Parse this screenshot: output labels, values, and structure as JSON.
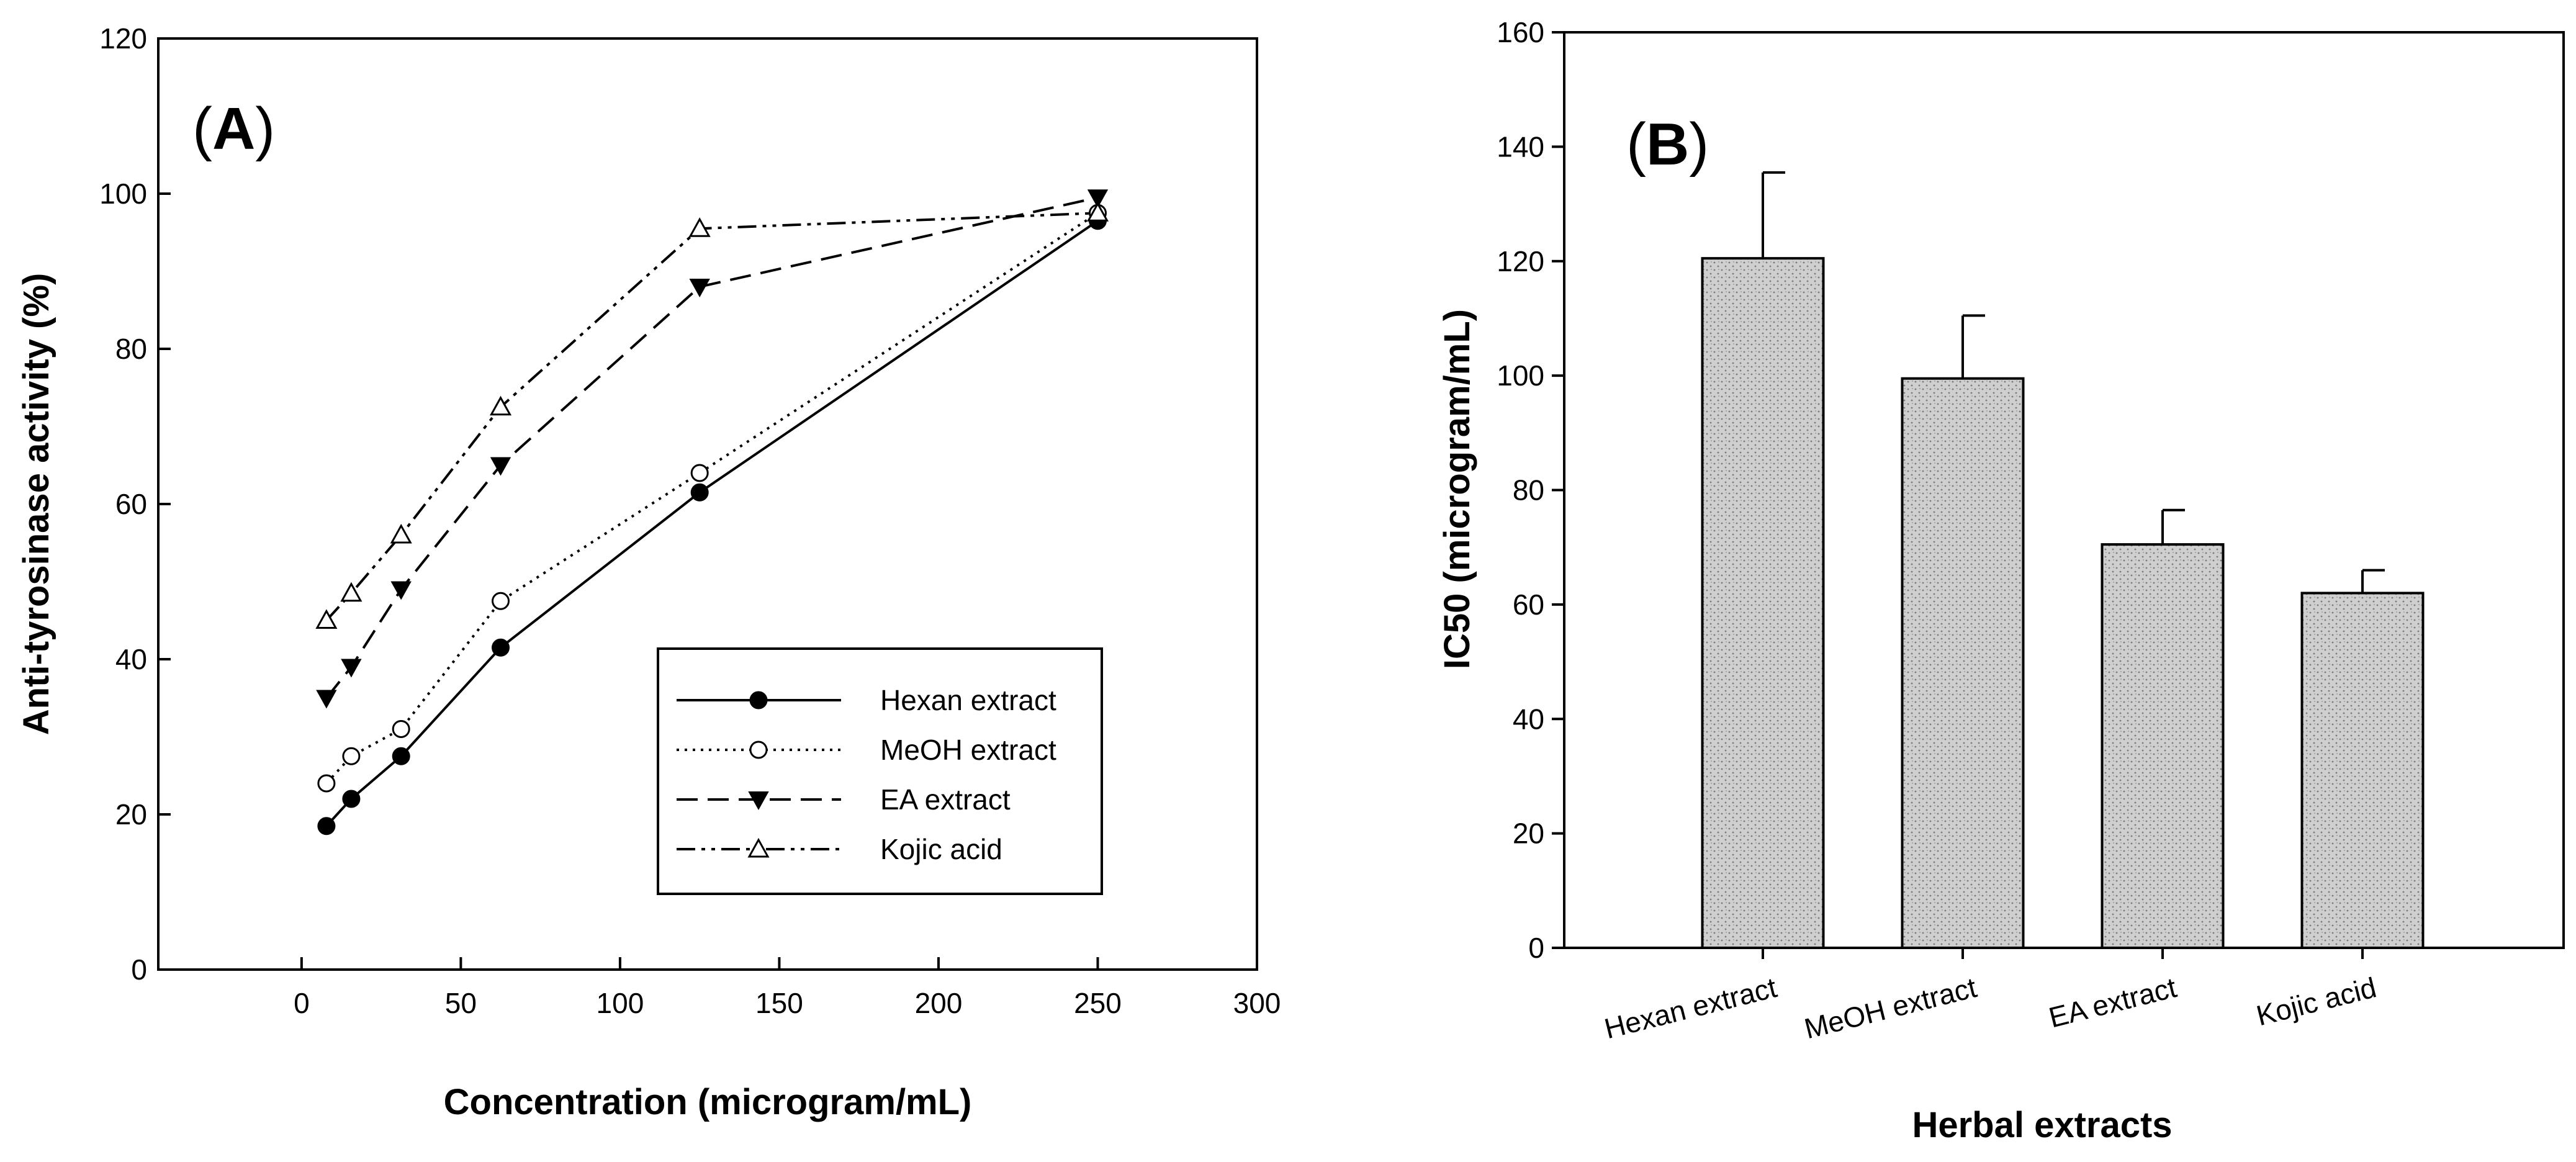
{
  "chart_data": [
    {
      "type": "line",
      "panel_label": {
        "open": "(",
        "letter": "A",
        "close": ")"
      },
      "xlabel": "Concentration (microgram/mL)",
      "ylabel": "Anti-tyrosinase activity (%)",
      "xlim": [
        -45,
        300
      ],
      "ylim": [
        0,
        120
      ],
      "xticks": [
        0,
        50,
        100,
        150,
        200,
        250,
        300
      ],
      "yticks": [
        0,
        20,
        40,
        60,
        80,
        100,
        120
      ],
      "grid": false,
      "legend_position": "lower-right",
      "series": [
        {
          "name": "Hexan extract",
          "marker": "filled-circle",
          "line": "solid",
          "x": [
            7.8,
            15.6,
            31.25,
            62.5,
            125,
            250
          ],
          "y": [
            18.5,
            22,
            27.5,
            41.5,
            61.5,
            96.5
          ]
        },
        {
          "name": "MeOH extract",
          "marker": "open-circle",
          "line": "dotted",
          "x": [
            7.8,
            15.6,
            31.25,
            62.5,
            125,
            250
          ],
          "y": [
            24,
            27.5,
            31,
            47.5,
            64,
            97.5
          ]
        },
        {
          "name": "EA extract",
          "marker": "filled-triangle-down",
          "line": "dashed",
          "x": [
            7.8,
            15.6,
            31.25,
            62.5,
            125,
            250
          ],
          "y": [
            35,
            39,
            49,
            65,
            88,
            99.5
          ]
        },
        {
          "name": "Kojic acid",
          "marker": "open-triangle-up",
          "line": "dash-dot-dot",
          "x": [
            7.8,
            15.6,
            31.25,
            62.5,
            125,
            250
          ],
          "y": [
            45,
            48.5,
            56,
            72.5,
            95.5,
            97.5
          ]
        }
      ]
    },
    {
      "type": "bar",
      "panel_label": {
        "open": "(",
        "letter": "B",
        "close": ")"
      },
      "xlabel": "Herbal extracts",
      "ylabel": "IC50 (microgram/mL)",
      "ylim": [
        0,
        160
      ],
      "yticks": [
        0,
        20,
        40,
        60,
        80,
        100,
        120,
        140,
        160
      ],
      "grid": false,
      "categories": [
        "Hexan extract",
        "MeOH extract",
        "EA extract",
        "Kojic acid"
      ],
      "values": [
        120.5,
        99.5,
        70.5,
        62
      ],
      "errors": [
        15,
        11,
        6,
        4
      ],
      "bar_color": "#c8c8c8"
    }
  ]
}
